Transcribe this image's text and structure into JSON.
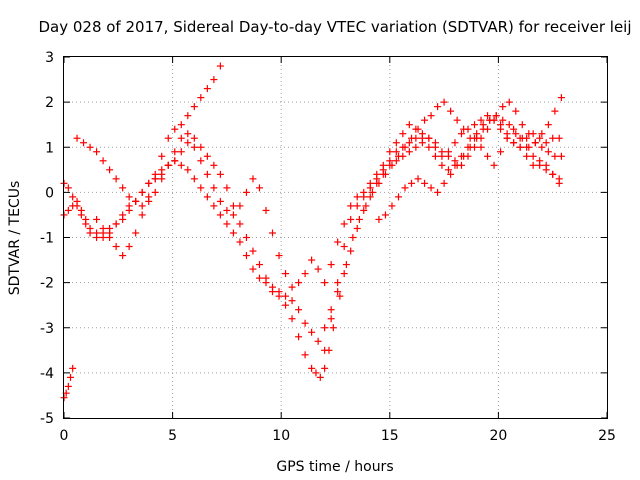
{
  "chart_data": {
    "type": "scatter",
    "title": "Day 028 of 2017, Sidereal Day-to-day VTEC variation (SDTVAR) for receiver leij",
    "xlabel": "GPS time / hours",
    "ylabel": "SDTVAR / TECUs",
    "xlim": [
      0,
      25
    ],
    "ylim": [
      -5,
      3
    ],
    "xticks": [
      "0",
      "5",
      "10",
      "15",
      "20",
      "25"
    ],
    "yticks": [
      "3",
      "2",
      "1",
      "0",
      "-1",
      "-2",
      "-3",
      "-4",
      "-5"
    ],
    "grid": true,
    "legend": "none",
    "marker": "plus",
    "color": "#ff0000",
    "series": [
      {
        "x": [
          0.0,
          0.2,
          0.4,
          0.6,
          0.8,
          1.0,
          1.2,
          1.5,
          1.8,
          2.1,
          2.4,
          2.7,
          3.0,
          3.3,
          3.6,
          3.9,
          4.2,
          4.5,
          4.8,
          5.1,
          5.4,
          5.7,
          6.0,
          6.3,
          6.6,
          6.9,
          7.2,
          7.5,
          7.8,
          8.1,
          8.4,
          8.7,
          9.0,
          9.3,
          9.6,
          9.9,
          10.2,
          10.5,
          10.8,
          11.1,
          11.4,
          11.6,
          11.8,
          12.0,
          12.2,
          12.4,
          12.7,
          13.0,
          13.3,
          13.6,
          13.9,
          14.2,
          14.5,
          14.8,
          15.1,
          15.4,
          15.7,
          16.0,
          16.3,
          16.6,
          16.9,
          17.2,
          17.5,
          17.8,
          18.1,
          18.4,
          18.7,
          19.0,
          19.3,
          19.6,
          19.9,
          20.2,
          20.5,
          20.8,
          21.1,
          21.4,
          21.7,
          22.0,
          22.3,
          22.6,
          22.9
        ],
        "y": [
          -0.5,
          -0.4,
          -0.3,
          -0.2,
          -0.4,
          -0.6,
          -0.8,
          -0.9,
          -1.0,
          -0.9,
          -0.7,
          -0.5,
          -0.3,
          -0.2,
          0.0,
          0.2,
          0.3,
          0.4,
          0.6,
          0.7,
          0.9,
          1.1,
          1.2,
          1.0,
          0.8,
          0.6,
          0.4,
          0.1,
          -0.3,
          -0.7,
          -1.0,
          -1.3,
          -1.6,
          -1.9,
          -2.2,
          -2.3,
          -2.5,
          -2.8,
          -3.2,
          -3.6,
          -3.9,
          -4.0,
          -4.1,
          -3.9,
          -3.5,
          -3.0,
          -2.3,
          -1.6,
          -1.0,
          -0.6,
          -0.3,
          0.0,
          0.2,
          0.4,
          0.6,
          0.8,
          1.0,
          1.2,
          1.4,
          1.6,
          1.7,
          1.9,
          2.0,
          1.8,
          1.6,
          1.4,
          1.2,
          1.3,
          1.5,
          1.6,
          1.7,
          1.9,
          2.0,
          1.8,
          1.5,
          1.3,
          1.1,
          1.0,
          0.9,
          0.8,
          0.8
        ]
      },
      {
        "x": [
          0.0,
          0.2,
          0.4,
          0.6,
          0.8,
          1.0,
          1.2,
          1.5,
          1.8,
          2.1,
          2.4,
          2.7,
          3.0,
          3.3,
          3.6,
          3.9,
          4.2,
          4.5,
          4.8,
          5.1,
          5.4,
          5.7,
          6.0,
          6.3,
          6.6,
          6.9,
          7.2,
          7.5,
          7.8,
          8.1,
          8.4,
          8.7,
          9.0,
          9.3,
          9.6,
          9.9,
          10.2,
          10.5,
          10.8,
          11.1,
          11.4,
          11.7,
          12.0,
          12.3,
          12.6,
          12.9,
          13.2,
          13.5,
          13.8,
          14.1,
          14.4,
          14.7,
          15.0,
          15.3,
          15.6,
          15.9,
          16.2,
          16.5,
          16.8,
          17.1,
          17.4,
          17.7,
          18.0,
          18.3,
          18.6,
          18.9,
          19.2,
          19.5,
          19.8,
          20.1,
          20.4,
          20.7,
          21.0,
          21.3,
          21.6,
          21.9,
          22.2,
          22.5,
          22.8
        ],
        "y": [
          0.2,
          0.1,
          -0.1,
          -0.3,
          -0.5,
          -0.7,
          -0.9,
          -1.0,
          -0.9,
          -0.8,
          -0.7,
          -0.6,
          -0.4,
          -0.2,
          0.0,
          0.2,
          0.4,
          0.5,
          0.6,
          0.7,
          0.6,
          0.5,
          0.3,
          0.1,
          -0.1,
          -0.3,
          -0.5,
          -0.7,
          -0.9,
          -1.1,
          -1.4,
          -1.7,
          -1.9,
          -2.0,
          -2.1,
          -2.2,
          -2.3,
          -2.4,
          -2.6,
          -2.9,
          -3.1,
          -3.3,
          -3.0,
          -2.6,
          -2.2,
          -1.8,
          -1.3,
          -0.8,
          -0.4,
          -0.1,
          0.2,
          0.4,
          0.6,
          0.7,
          0.8,
          0.9,
          1.0,
          1.1,
          1.2,
          1.1,
          0.9,
          0.8,
          0.7,
          0.6,
          0.8,
          1.0,
          1.2,
          1.4,
          1.6,
          1.5,
          1.3,
          1.1,
          1.0,
          0.8,
          0.6,
          0.7,
          0.6,
          0.4,
          0.2
        ]
      },
      {
        "x": [
          0.6,
          0.9,
          1.2,
          1.5,
          1.8,
          2.1,
          2.4,
          2.7,
          3.0,
          3.3,
          3.6,
          3.9,
          4.2,
          4.5,
          4.8,
          5.1,
          5.4,
          5.7,
          6.0,
          6.3,
          6.6,
          6.9,
          7.2,
          7.5,
          7.8,
          8.1,
          8.4,
          8.7,
          9.0,
          9.3,
          9.6,
          9.9,
          10.2,
          10.5,
          10.8,
          11.1,
          11.4,
          11.7,
          12.0,
          12.3,
          12.6,
          12.9,
          13.2,
          13.5,
          13.8,
          14.1,
          14.4,
          14.7,
          15.0,
          15.3,
          15.6,
          15.9,
          16.2,
          16.5,
          16.8,
          17.1,
          17.4,
          17.7,
          18.0,
          18.3,
          18.6,
          18.9,
          19.2,
          19.5,
          19.8,
          20.1,
          20.4,
          20.7,
          21.0,
          21.3,
          21.6,
          21.9,
          22.2,
          22.5,
          22.8
        ],
        "y": [
          1.2,
          1.1,
          1.0,
          0.9,
          0.7,
          0.5,
          0.3,
          0.1,
          -0.1,
          -0.2,
          -0.3,
          -0.2,
          0.0,
          0.3,
          0.6,
          0.9,
          1.2,
          1.3,
          1.0,
          0.7,
          0.4,
          0.1,
          -0.2,
          -0.4,
          -0.5,
          -0.3,
          0.0,
          0.3,
          0.1,
          -0.4,
          -0.9,
          -1.4,
          -1.8,
          -2.1,
          -2.0,
          -1.8,
          -1.5,
          -1.7,
          -2.0,
          -1.6,
          -1.1,
          -0.7,
          -0.3,
          -0.1,
          0.0,
          0.2,
          0.4,
          0.6,
          0.9,
          1.1,
          1.3,
          1.5,
          1.4,
          1.2,
          1.0,
          0.8,
          0.6,
          0.5,
          0.6,
          0.8,
          1.0,
          1.2,
          1.0,
          0.8,
          0.6,
          0.9,
          1.2,
          1.4,
          1.2,
          1.0,
          0.8,
          0.6,
          0.5,
          0.4,
          0.3
        ]
      },
      {
        "x": [
          1.5,
          1.8,
          2.1,
          2.4,
          2.7,
          3.0,
          3.3,
          3.6,
          3.9,
          4.2,
          4.5,
          4.8,
          5.1,
          5.4,
          5.7,
          6.0,
          6.3,
          6.6,
          6.9,
          7.2
        ],
        "y": [
          -0.6,
          -0.8,
          -1.0,
          -1.2,
          -1.4,
          -1.2,
          -0.9,
          -0.5,
          -0.1,
          0.3,
          0.8,
          1.2,
          1.4,
          1.5,
          1.7,
          1.9,
          2.1,
          2.3,
          2.5,
          2.8
        ]
      },
      {
        "x": [
          0.0,
          0.1,
          0.2,
          0.3,
          0.4
        ],
        "y": [
          -4.55,
          -4.45,
          -4.3,
          -4.1,
          -3.9
        ]
      },
      {
        "x": [
          14.5,
          14.8,
          15.1,
          15.4,
          15.7,
          16.0,
          16.3,
          16.6,
          16.9,
          17.2,
          17.5,
          17.8,
          18.1,
          18.4,
          18.7,
          19.0,
          19.3,
          19.6,
          19.9,
          20.2,
          20.5,
          20.8,
          21.1,
          21.4,
          21.7,
          22.0,
          22.3,
          22.6,
          22.9
        ],
        "y": [
          -0.6,
          -0.5,
          -0.3,
          -0.1,
          0.1,
          0.2,
          0.3,
          0.2,
          0.1,
          0.0,
          0.2,
          0.4,
          0.6,
          0.8,
          1.0,
          1.2,
          1.4,
          1.6,
          1.7,
          1.6,
          1.5,
          1.3,
          1.2,
          1.0,
          1.1,
          1.3,
          1.5,
          1.8,
          2.1
        ]
      },
      {
        "x": [
          12.0,
          12.3,
          12.6,
          12.9,
          13.2,
          13.5,
          13.8,
          14.1,
          14.4,
          14.7,
          15.0,
          15.3,
          15.6,
          15.9,
          16.2,
          16.5,
          16.8,
          17.1,
          17.4,
          17.7,
          18.0,
          18.3,
          18.6,
          18.9,
          19.2,
          19.5,
          19.8,
          20.1,
          20.4,
          20.7,
          21.0,
          21.3,
          21.6,
          21.9,
          22.2,
          22.5,
          22.8
        ],
        "y": [
          -3.5,
          -2.8,
          -2.0,
          -1.2,
          -0.6,
          -0.3,
          -0.1,
          0.1,
          0.3,
          0.5,
          0.7,
          0.9,
          1.0,
          1.1,
          1.2,
          1.3,
          1.2,
          1.0,
          0.8,
          0.9,
          1.1,
          1.3,
          1.4,
          1.5,
          1.6,
          1.7,
          1.6,
          1.4,
          1.2,
          1.1,
          1.0,
          1.2,
          1.3,
          1.2,
          1.1,
          1.2,
          1.2
        ]
      }
    ]
  }
}
